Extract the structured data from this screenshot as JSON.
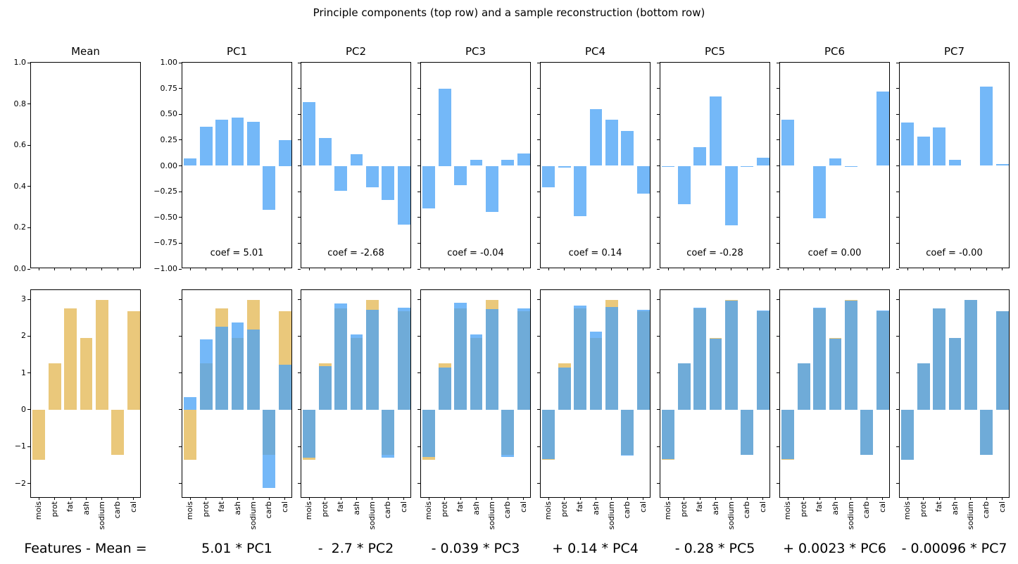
{
  "suptitle": "Principle components (top row) and a sample reconstruction (bottom row)",
  "colors": {
    "pc_bar_blue": "#74b8f8",
    "target_bar_tan": "#eac87b",
    "recon_bar_blue_rgba": "rgba(72,162,246,0.76)",
    "axis_line": "#000000",
    "text": "#000000"
  },
  "chart_data": {
    "type": "bar",
    "suptitle": "Principle components (top row) and a sample reconstruction (bottom row)",
    "features": [
      "mois",
      "prot",
      "fat",
      "ash",
      "sodium",
      "carb",
      "cal"
    ],
    "top_row": {
      "ylim": [
        -1.0,
        1.0
      ],
      "ytick_values": [
        1.0,
        0.75,
        0.5,
        0.25,
        0.0,
        -0.25,
        -0.5,
        -0.75,
        -1.0
      ],
      "ytick_labels": [
        "1.00",
        "0.75",
        "0.50",
        "0.25",
        "0.00",
        "−0.25",
        "−0.50",
        "−0.75",
        "−1.00"
      ],
      "mean_panel": {
        "title": "Mean",
        "ylim": [
          0.0,
          1.0
        ],
        "ytick_values": [
          1.0,
          0.8,
          0.6,
          0.4,
          0.2,
          0.0
        ],
        "ytick_labels": [
          "1.0",
          "0.8",
          "0.6",
          "0.4",
          "0.2",
          "0.0"
        ],
        "values": [
          0,
          0,
          0,
          0,
          0,
          0,
          0
        ]
      },
      "pc_panels": [
        {
          "title": "PC1",
          "coef_label": "coef = 5.01",
          "values": [
            0.07,
            0.38,
            0.45,
            0.47,
            0.43,
            -0.43,
            0.25
          ]
        },
        {
          "title": "PC2",
          "coef_label": "coef = -2.68",
          "values": [
            0.62,
            0.27,
            -0.24,
            0.11,
            -0.21,
            -0.33,
            -0.57
          ]
        },
        {
          "title": "PC3",
          "coef_label": "coef = -0.04",
          "values": [
            -0.41,
            0.75,
            -0.19,
            0.06,
            -0.45,
            0.06,
            0.12
          ]
        },
        {
          "title": "PC4",
          "coef_label": "coef = 0.14",
          "values": [
            -0.21,
            -0.02,
            -0.49,
            0.55,
            0.45,
            0.34,
            -0.27
          ]
        },
        {
          "title": "PC5",
          "coef_label": "coef = -0.28",
          "values": [
            -0.01,
            -0.37,
            0.18,
            0.67,
            -0.58,
            -0.01,
            0.08
          ]
        },
        {
          "title": "PC6",
          "coef_label": "coef = 0.00",
          "values": [
            0.45,
            0,
            -0.51,
            0.07,
            -0.01,
            0,
            0.72
          ]
        },
        {
          "title": "PC7",
          "coef_label": "coef = -0.00",
          "values": [
            0.42,
            0.28,
            0.37,
            0.06,
            0,
            0.77,
            0.02
          ]
        }
      ]
    },
    "bottom_row": {
      "ylim": [
        -2.41,
        3.25
      ],
      "ytick_values": [
        3,
        2,
        1,
        0,
        -1,
        -2
      ],
      "ytick_labels": [
        "3",
        "2",
        "1",
        "0",
        "−1",
        "−2"
      ],
      "target_values": [
        -1.35,
        1.27,
        2.75,
        1.95,
        2.98,
        -1.22,
        2.68
      ],
      "panels": [
        {
          "xlabel": "Features - Mean =",
          "recon": null
        },
        {
          "xlabel": "5.01 * PC1",
          "recon": [
            0.35,
            1.92,
            2.25,
            2.37,
            2.18,
            -2.13,
            1.23
          ]
        },
        {
          "xlabel": "-  2.7 * PC2",
          "recon": [
            -1.31,
            1.18,
            2.89,
            2.05,
            2.71,
            -1.3,
            2.77
          ]
        },
        {
          "xlabel": "- 0.039 * PC3",
          "recon": [
            -1.29,
            1.15,
            2.9,
            2.05,
            2.73,
            -1.29,
            2.76
          ]
        },
        {
          "xlabel": "+ 0.14 * PC4",
          "recon": [
            -1.33,
            1.15,
            2.83,
            2.13,
            2.79,
            -1.24,
            2.72
          ]
        },
        {
          "xlabel": "- 0.28 * PC5",
          "recon": [
            -1.34,
            1.26,
            2.77,
            1.93,
            2.96,
            -1.23,
            2.69
          ]
        },
        {
          "xlabel": "+ 0.0023 * PC6",
          "recon": [
            -1.34,
            1.26,
            2.77,
            1.93,
            2.96,
            -1.23,
            2.69
          ]
        },
        {
          "xlabel": "- 0.00096 * PC7",
          "recon": [
            -1.35,
            1.27,
            2.75,
            1.95,
            2.98,
            -1.22,
            2.68
          ]
        }
      ]
    }
  }
}
